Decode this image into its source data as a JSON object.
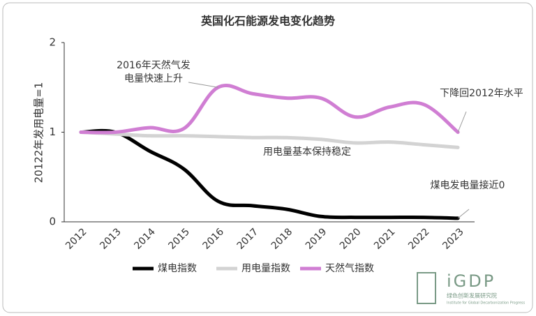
{
  "chart_data": {
    "type": "line",
    "title": "英国化石能源发电变化趋势",
    "y_label": "20122年发用电量=1",
    "categories": [
      "2012",
      "2013",
      "2014",
      "2015",
      "2016",
      "2017",
      "2018",
      "2019",
      "2020",
      "2021",
      "2022",
      "2023"
    ],
    "series": [
      {
        "name": "煤电指数",
        "color": "#000000",
        "values": [
          1.0,
          1.0,
          0.79,
          0.59,
          0.23,
          0.18,
          0.14,
          0.06,
          0.05,
          0.05,
          0.05,
          0.04
        ]
      },
      {
        "name": "用电量指数",
        "color": "#d3d3d3",
        "values": [
          1.0,
          0.98,
          0.96,
          0.96,
          0.95,
          0.94,
          0.94,
          0.92,
          0.88,
          0.89,
          0.86,
          0.83
        ]
      },
      {
        "name": "天然气指数",
        "color": "#d07ed3",
        "values": [
          1.0,
          1.0,
          1.05,
          1.04,
          1.5,
          1.43,
          1.38,
          1.38,
          1.17,
          1.28,
          1.31,
          1.0
        ]
      }
    ],
    "ylim": [
      0,
      2
    ],
    "yticks": [
      0,
      1,
      2
    ],
    "annotations": [
      {
        "lines": [
          "2016年天然气发",
          "电量快速上升"
        ]
      },
      {
        "lines": [
          "下降回2012年水平"
        ]
      },
      {
        "lines": [
          "用电量基本保持稳定"
        ]
      },
      {
        "lines": [
          "煤电发电量接近0"
        ]
      }
    ]
  },
  "logo": {
    "name": "iGDP",
    "subtitle": "绿色创新发展研究院",
    "english": "Institute for Global Decarbonization Progress"
  }
}
